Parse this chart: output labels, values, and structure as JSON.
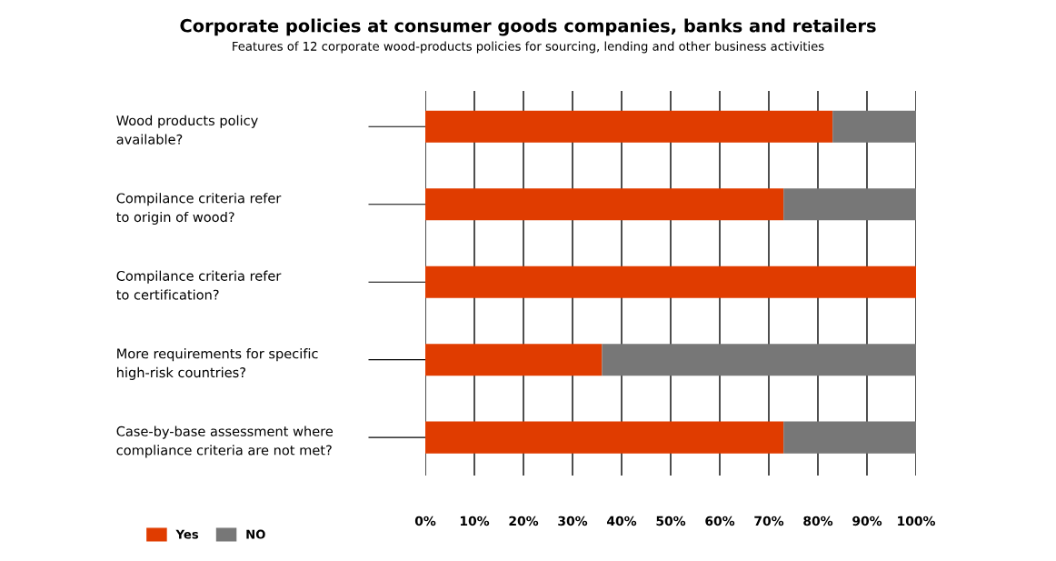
{
  "chart_data": {
    "type": "bar",
    "orientation": "horizontal",
    "stacked": true,
    "title": "Corporate policies at consumer goods companies, banks and retailers",
    "subtitle": "Features of 12 corporate wood-products policies for sourcing, lending and other business activities",
    "categories": [
      "Wood products policy\navailable?",
      "Compilance criteria refer\nto origin of wood?",
      "Compilance criteria refer\nto certification?",
      "More requirements for specific\nhigh-risk countries?",
      "Case-by-base assessment where\ncompliance criteria are not met?"
    ],
    "series": [
      {
        "name": "Yes",
        "color": "#e03c00",
        "values": [
          83,
          73,
          100,
          36,
          73
        ]
      },
      {
        "name": "NO",
        "color": "#777777",
        "values": [
          17,
          27,
          0,
          64,
          27
        ]
      }
    ],
    "xlim": [
      0,
      100
    ],
    "xticks": [
      {
        "value": 0,
        "label": "0%"
      },
      {
        "value": 10,
        "label": "10%"
      },
      {
        "value": 20,
        "label": "20%"
      },
      {
        "value": 30,
        "label": "30%"
      },
      {
        "value": 40,
        "label": "40%"
      },
      {
        "value": 50,
        "label": "50%"
      },
      {
        "value": 60,
        "label": "60%"
      },
      {
        "value": 70,
        "label": "70%"
      },
      {
        "value": 80,
        "label": "80%"
      },
      {
        "value": 90,
        "label": "90%"
      },
      {
        "value": 100,
        "label": "100%"
      }
    ],
    "grid": "x",
    "legend": "bottom left"
  }
}
